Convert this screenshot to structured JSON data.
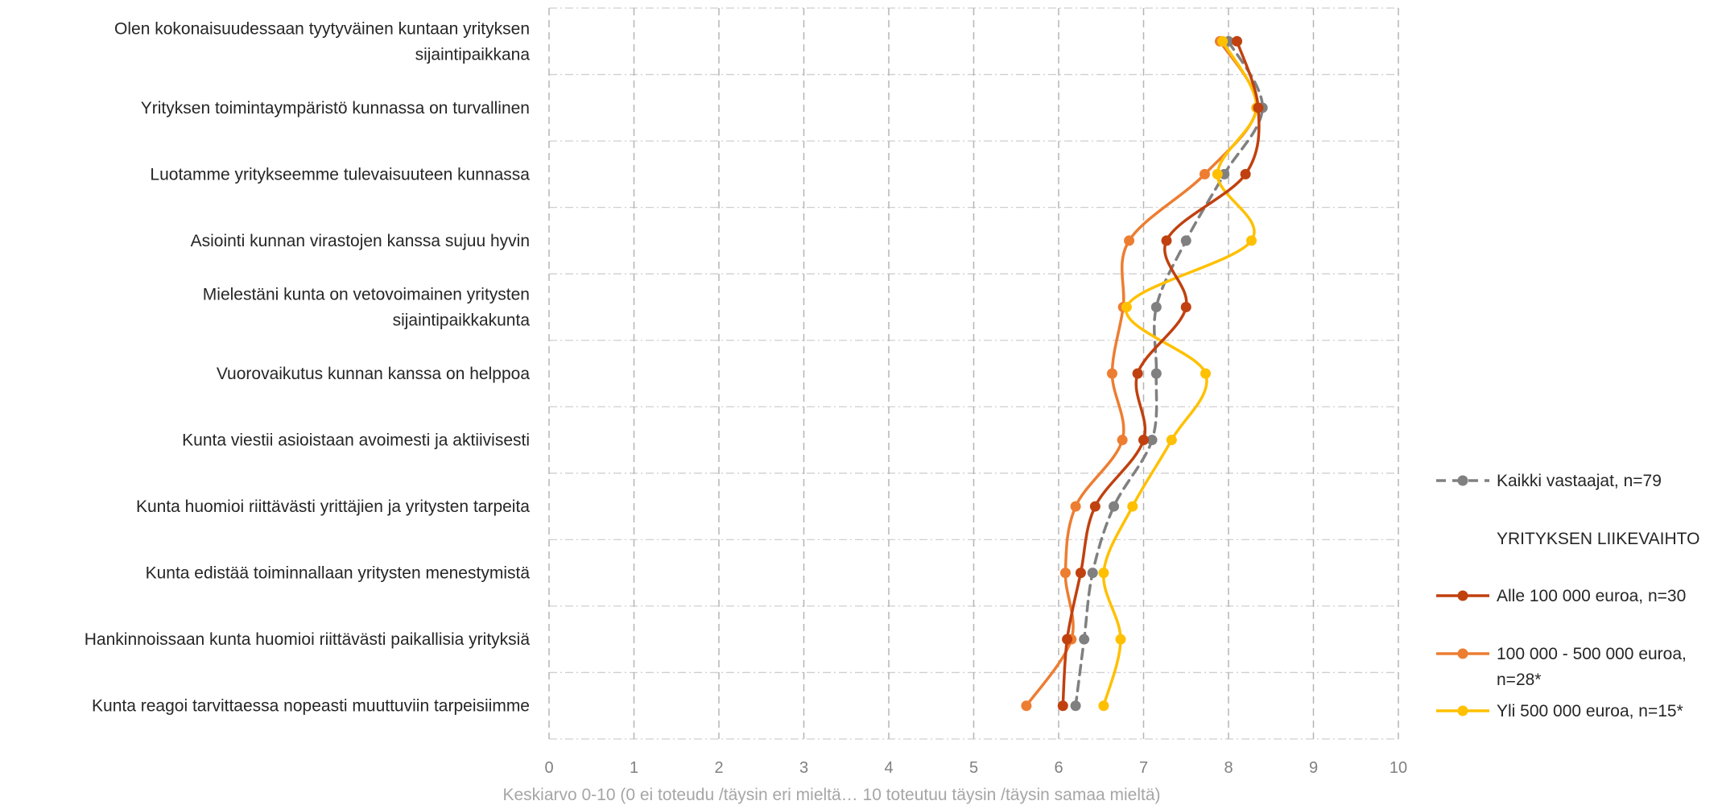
{
  "chart_data": {
    "type": "line",
    "orientation": "horizontal",
    "title": "",
    "xlabel": "Keskiarvo 0-10 (0 ei toteudu /täysin eri mieltä… 10 toteutuu täysin /täysin samaa mieltä)",
    "xlim": [
      0,
      10
    ],
    "xticks": [
      "0",
      "1",
      "2",
      "3",
      "4",
      "5",
      "6",
      "7",
      "8",
      "9",
      "10"
    ],
    "grid": true,
    "legend_position": "right",
    "categories": [
      [
        "Olen kokonaisuudessaan tyytyväinen kuntaan yrityksen",
        "sijaintipaikkana"
      ],
      [
        "Yrityksen toimintaympäristö kunnassa on turvallinen"
      ],
      [
        "Luotamme yritykseemme tulevaisuuteen kunnassa"
      ],
      [
        "Asiointi kunnan virastojen kanssa sujuu hyvin"
      ],
      [
        "Mielestäni kunta on vetovoimainen yritysten",
        "sijaintipaikkakunta"
      ],
      [
        "Vuorovaikutus kunnan kanssa on helppoa"
      ],
      [
        "Kunta viestii asioistaan avoimesti ja aktiivisesti"
      ],
      [
        "Kunta huomioi riittävästi yrittäjien ja yritysten tarpeita"
      ],
      [
        "Kunta edistää toiminnallaan yritysten menestymistä"
      ],
      [
        "Hankinnoissaan kunta huomioi riittävästi paikallisia yrityksiä"
      ],
      [
        "Kunta reagoi tarvittaessa nopeasti muuttuviin tarpeisiimme"
      ]
    ],
    "legend_group_title": "YRITYKSEN LIIKEVAIHTO",
    "series": [
      {
        "name": [
          "Kaikki vastaajat, n=79"
        ],
        "color": "#808080",
        "dashed": true,
        "values": [
          8.0,
          8.4,
          7.95,
          7.5,
          7.15,
          7.15,
          7.1,
          6.65,
          6.4,
          6.3,
          6.2
        ]
      },
      {
        "name": [
          "Alle 100 000 euroa, n=30"
        ],
        "color": "#c0410f",
        "dashed": false,
        "values": [
          8.1,
          8.35,
          8.2,
          7.27,
          7.5,
          6.93,
          7.0,
          6.43,
          6.26,
          6.1,
          6.05
        ]
      },
      {
        "name": [
          "100 000 - 500 000 euroa,",
          "n=28*"
        ],
        "color": "#ed7d31",
        "dashed": false,
        "values": [
          7.9,
          8.33,
          7.72,
          6.83,
          6.76,
          6.63,
          6.75,
          6.2,
          6.08,
          6.15,
          5.62
        ]
      },
      {
        "name": [
          "Yli 500 000 euroa, n=15*"
        ],
        "color": "#ffc000",
        "dashed": false,
        "values": [
          7.93,
          8.33,
          7.87,
          8.27,
          6.8,
          7.73,
          7.33,
          6.87,
          6.53,
          6.73,
          6.53
        ]
      }
    ]
  }
}
